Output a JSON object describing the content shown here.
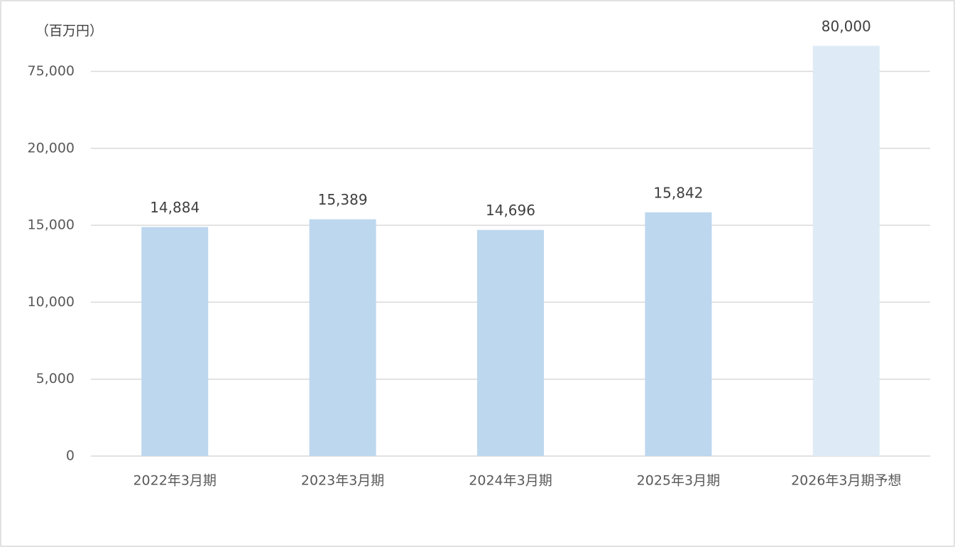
{
  "chart_data": {
    "type": "bar",
    "unit_label": "（百万円）",
    "categories": [
      "2022年3月期",
      "2023年3月期",
      "2024年3月期",
      "2025年3月期",
      "2026年3月期予想"
    ],
    "values": [
      14884,
      15389,
      14696,
      15842,
      80000
    ],
    "value_labels": [
      "14,884",
      "15,389",
      "14,696",
      "15,842",
      "80,000"
    ],
    "colors": [
      "#bdd7ee",
      "#bdd7ee",
      "#bdd7ee",
      "#bdd7ee",
      "#deebf7"
    ],
    "ylim": [
      0,
      80000
    ],
    "yticks": [
      0,
      {
        "value": 5000,
        "label": "5,000"
      },
      {
        "value": 10000,
        "label": "10,000"
      },
      {
        "value": 15000,
        "label": "15,000"
      },
      {
        "value": 20000,
        "label": "20,000"
      },
      {
        "value": 75000,
        "label": "75,000"
      }
    ],
    "grid": true
  }
}
